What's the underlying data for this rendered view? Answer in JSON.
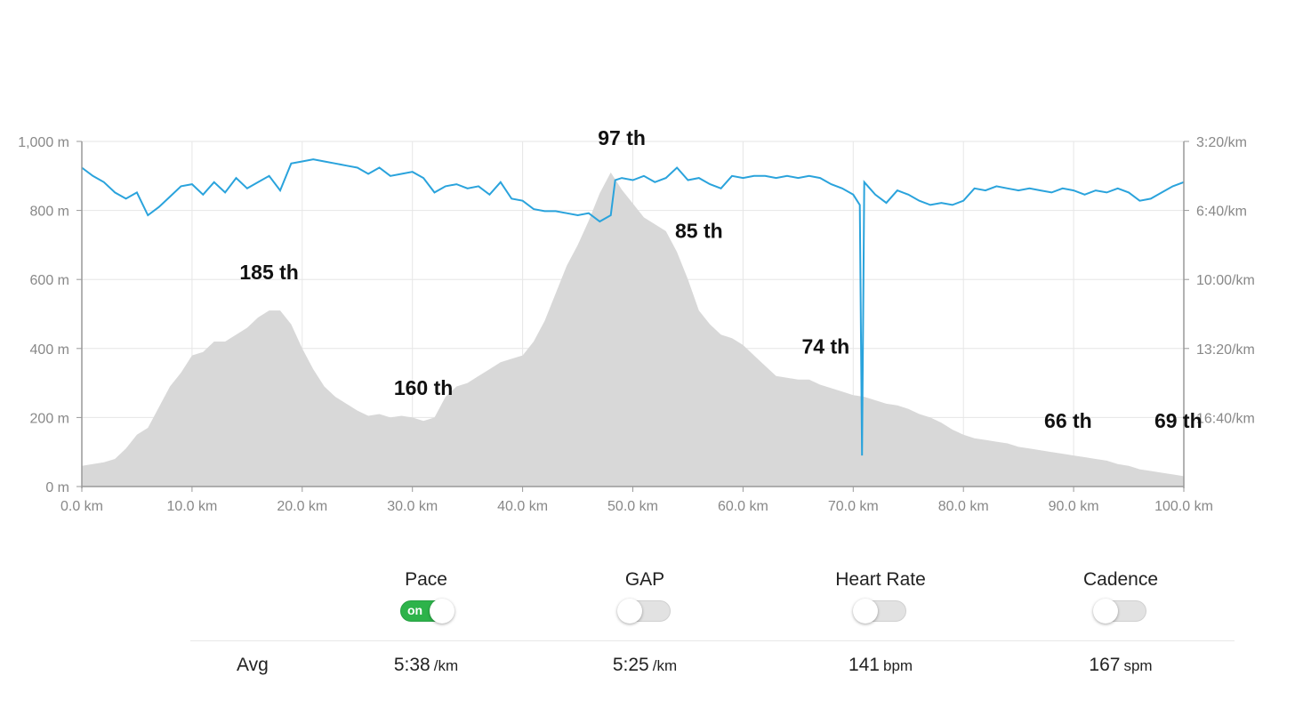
{
  "chart_data": {
    "type": "area",
    "xlabel": "",
    "x_ticks": [
      "0.0 km",
      "10.0 km",
      "20.0 km",
      "30.0 km",
      "40.0 km",
      "50.0 km",
      "60.0 km",
      "70.0 km",
      "80.0 km",
      "90.0 km",
      "100.0 km"
    ],
    "xlim": [
      0,
      100
    ],
    "y_left": {
      "ticks": [
        "0 m",
        "200 m",
        "400 m",
        "600 m",
        "800 m",
        "1,000 m"
      ],
      "tick_values": [
        0,
        200,
        400,
        600,
        800,
        1000
      ],
      "ylim": [
        0,
        1000
      ]
    },
    "y_right": {
      "ticks": [
        "3:20/km",
        "6:40/km",
        "10:00/km",
        "13:20/km",
        "16:40/km"
      ],
      "tick_values_min_per_km": [
        3.333,
        6.667,
        10.0,
        13.333,
        16.667
      ],
      "range_min_per_km": [
        3.333,
        20.0
      ]
    },
    "grid": true,
    "series": [
      {
        "kind": "elevation-area",
        "color": "#d8d8d8",
        "x": [
          0,
          1,
          2,
          3,
          4,
          5,
          6,
          7,
          8,
          9,
          10,
          11,
          12,
          13,
          14,
          15,
          16,
          17,
          18,
          19,
          20,
          21,
          22,
          23,
          24,
          25,
          26,
          27,
          28,
          29,
          30,
          31,
          32,
          33,
          34,
          35,
          36,
          37,
          38,
          39,
          40,
          41,
          42,
          43,
          44,
          45,
          46,
          47,
          48,
          49,
          50,
          51,
          52,
          53,
          54,
          55,
          56,
          57,
          58,
          59,
          60,
          61,
          62,
          63,
          64,
          65,
          66,
          67,
          68,
          69,
          70,
          71,
          72,
          73,
          74,
          75,
          76,
          77,
          78,
          79,
          80,
          81,
          82,
          83,
          84,
          85,
          86,
          87,
          88,
          89,
          90,
          91,
          92,
          93,
          94,
          95,
          96,
          97,
          98,
          99,
          100
        ],
        "y": [
          60,
          65,
          70,
          80,
          110,
          150,
          170,
          230,
          290,
          330,
          380,
          390,
          420,
          420,
          440,
          460,
          490,
          510,
          510,
          470,
          400,
          340,
          290,
          260,
          240,
          220,
          205,
          210,
          200,
          205,
          200,
          190,
          200,
          260,
          290,
          300,
          320,
          340,
          360,
          370,
          380,
          420,
          480,
          560,
          640,
          700,
          770,
          850,
          910,
          860,
          820,
          780,
          760,
          740,
          680,
          600,
          510,
          470,
          440,
          430,
          410,
          380,
          350,
          320,
          315,
          310,
          310,
          295,
          285,
          275,
          265,
          260,
          250,
          240,
          235,
          225,
          210,
          200,
          185,
          165,
          150,
          140,
          135,
          130,
          125,
          115,
          110,
          105,
          100,
          95,
          90,
          85,
          80,
          75,
          65,
          60,
          50,
          45,
          40,
          35,
          30
        ]
      },
      {
        "kind": "pace-line",
        "name": "Pace",
        "color": "#2aa3dc",
        "x": [
          0,
          1,
          2,
          3,
          4,
          5,
          6,
          7,
          8,
          9,
          10,
          11,
          12,
          13,
          14,
          15,
          16,
          17,
          18,
          19,
          20,
          21,
          22,
          23,
          24,
          25,
          26,
          27,
          28,
          29,
          30,
          31,
          32,
          33,
          34,
          35,
          36,
          37,
          38,
          39,
          40,
          41,
          42,
          43,
          44,
          45,
          46,
          47,
          48,
          48.4,
          49,
          50,
          51,
          52,
          53,
          54,
          55,
          56,
          57,
          58,
          59,
          60,
          61,
          62,
          63,
          64,
          65,
          66,
          67,
          68,
          69,
          70,
          70.6,
          70.8,
          71,
          72,
          73,
          74,
          75,
          76,
          77,
          78,
          79,
          80,
          81,
          82,
          83,
          84,
          85,
          86,
          87,
          88,
          89,
          90,
          91,
          92,
          93,
          94,
          95,
          96,
          97,
          98,
          99,
          100
        ],
        "y_min_per_km": [
          4.6,
          5.0,
          5.3,
          5.8,
          6.1,
          5.8,
          6.9,
          6.5,
          6.0,
          5.5,
          5.4,
          5.9,
          5.3,
          5.8,
          5.1,
          5.6,
          5.3,
          5.0,
          5.7,
          4.4,
          4.3,
          4.2,
          4.3,
          4.4,
          4.5,
          4.6,
          4.9,
          4.6,
          5.0,
          4.9,
          4.8,
          5.1,
          5.8,
          5.5,
          5.4,
          5.6,
          5.5,
          5.9,
          5.3,
          6.1,
          6.2,
          6.6,
          6.7,
          6.7,
          6.8,
          6.9,
          6.8,
          7.2,
          6.9,
          5.2,
          5.1,
          5.2,
          5.0,
          5.3,
          5.1,
          4.6,
          5.2,
          5.1,
          5.4,
          5.6,
          5.0,
          5.1,
          5.0,
          5.0,
          5.1,
          5.0,
          5.1,
          5.0,
          5.1,
          5.4,
          5.6,
          5.9,
          6.4,
          18.5,
          5.3,
          5.9,
          6.3,
          5.7,
          5.9,
          6.2,
          6.4,
          6.3,
          6.4,
          6.2,
          5.6,
          5.7,
          5.5,
          5.6,
          5.7,
          5.6,
          5.7,
          5.8,
          5.6,
          5.7,
          5.9,
          5.7,
          5.8,
          5.6,
          5.8,
          6.2,
          6.1,
          5.8,
          5.5,
          5.3
        ]
      }
    ],
    "annotations": [
      {
        "text": "185 th",
        "x": 17.0,
        "y": 600
      },
      {
        "text": "160 th",
        "x": 31.0,
        "y": 265
      },
      {
        "text": "97 th",
        "x": 49.0,
        "y": 990
      },
      {
        "text": "85 th",
        "x": 56.0,
        "y": 720
      },
      {
        "text": "74 th",
        "x": 67.5,
        "y": 385
      },
      {
        "text": "66 th",
        "x": 89.5,
        "y": 170
      },
      {
        "text": "69 th",
        "x": 99.5,
        "y": 170
      }
    ]
  },
  "controls": [
    {
      "label": "Pace",
      "on": true,
      "on_text": "on"
    },
    {
      "label": "GAP",
      "on": false
    },
    {
      "label": "Heart Rate",
      "on": false
    },
    {
      "label": "Cadence",
      "on": false
    }
  ],
  "avg": {
    "label": "Avg",
    "stats": [
      {
        "value": "5:38",
        "unit": "/km"
      },
      {
        "value": "5:25",
        "unit": "/km"
      },
      {
        "value": "141",
        "unit": "bpm"
      },
      {
        "value": "167",
        "unit": "spm"
      }
    ]
  }
}
